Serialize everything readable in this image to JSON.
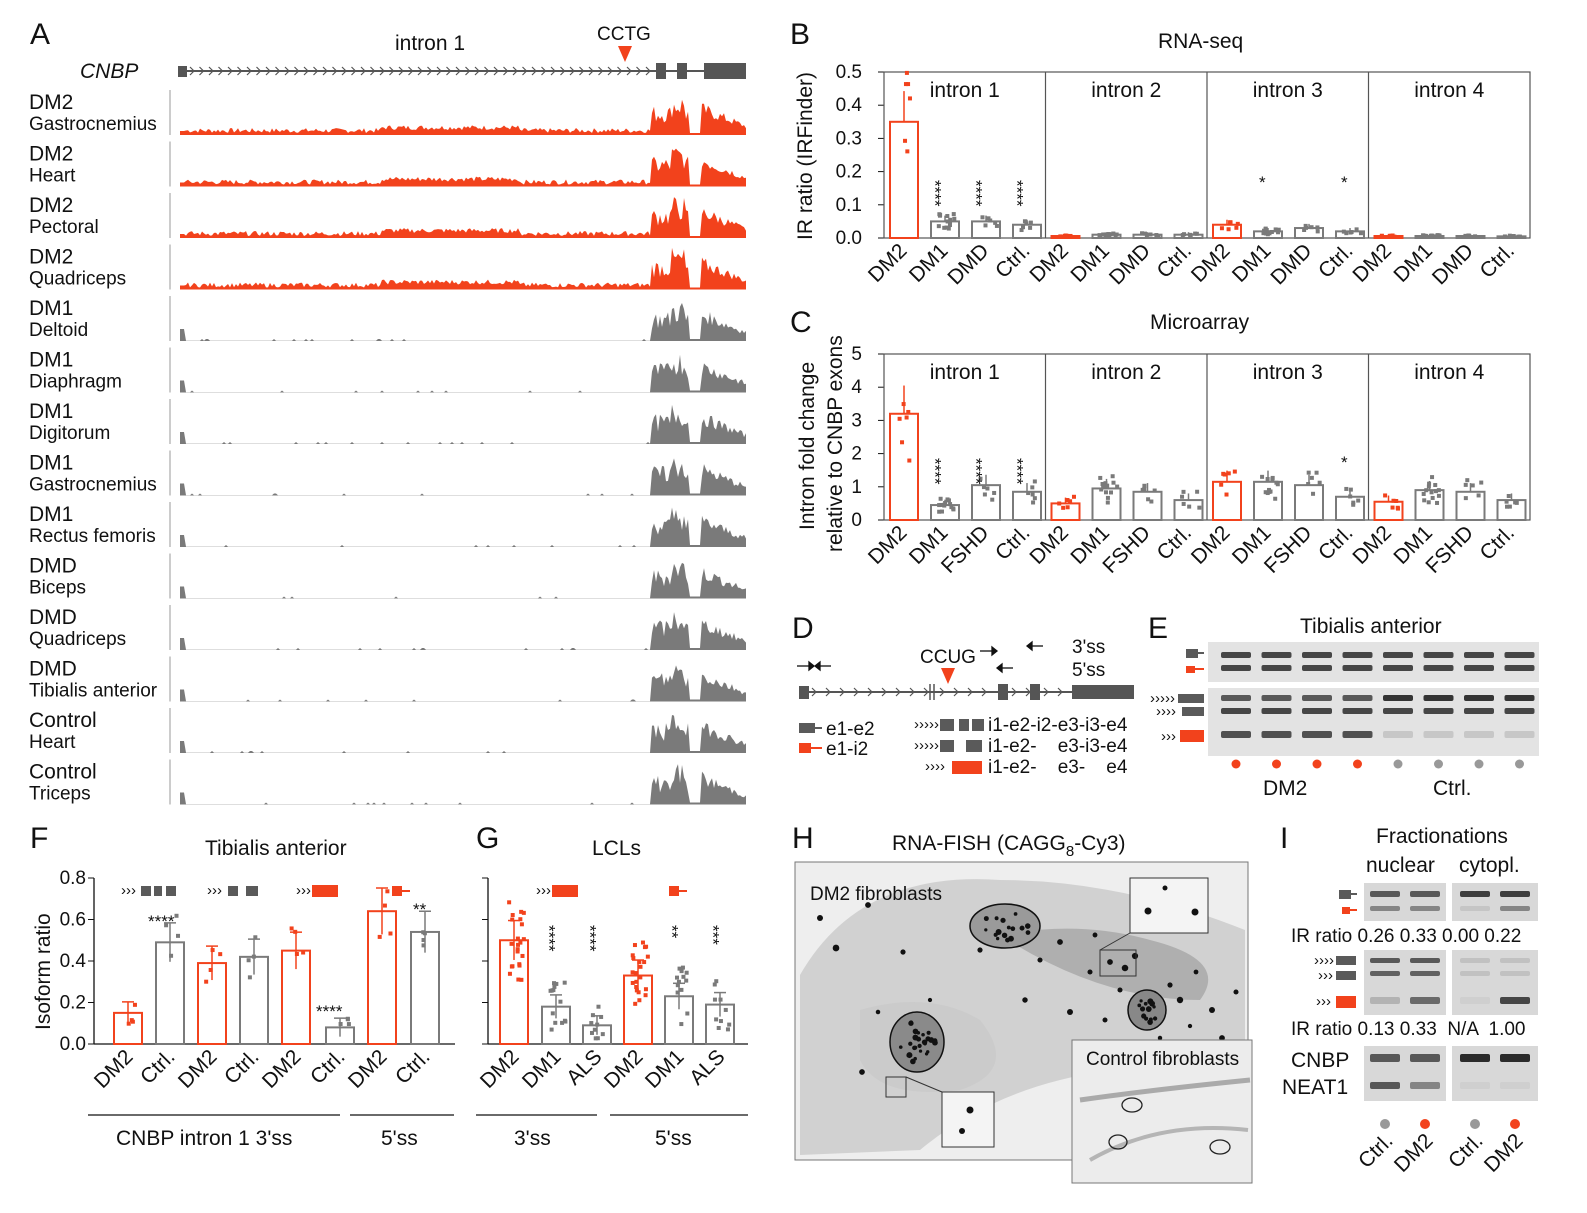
{
  "colors": {
    "dm2": "#f2421c",
    "grey": "#7a7a7a",
    "dark": "#5a5a5a"
  },
  "panelA": {
    "label": "A",
    "gene": "CNBP",
    "intron": "intron 1",
    "repeat": "CCTG",
    "tracks": [
      {
        "l1": "DM2",
        "l2": "Gastrocnemius",
        "group": "dm2"
      },
      {
        "l1": "DM2",
        "l2": "Heart",
        "group": "dm2"
      },
      {
        "l1": "DM2",
        "l2": "Pectoral",
        "group": "dm2"
      },
      {
        "l1": "DM2",
        "l2": "Quadriceps",
        "group": "dm2"
      },
      {
        "l1": "DM1",
        "l2": "Deltoid",
        "group": "other"
      },
      {
        "l1": "DM1",
        "l2": "Diaphragm",
        "group": "other"
      },
      {
        "l1": "DM1",
        "l2": "Digitorum",
        "group": "other"
      },
      {
        "l1": "DM1",
        "l2": "Gastrocnemius",
        "group": "other"
      },
      {
        "l1": "DM1",
        "l2": "Rectus femoris",
        "group": "other"
      },
      {
        "l1": "DMD",
        "l2": "Biceps",
        "group": "other"
      },
      {
        "l1": "DMD",
        "l2": "Quadriceps",
        "group": "other"
      },
      {
        "l1": "DMD",
        "l2": "Tibialis anterior",
        "group": "other"
      },
      {
        "l1": "Control",
        "l2": "Heart",
        "group": "other"
      },
      {
        "l1": "Control",
        "l2": "Triceps",
        "group": "other"
      }
    ]
  },
  "panelB": {
    "label": "B",
    "title": "RNA-seq",
    "ylabel": "IR ratio (IRFinder)",
    "yticks": [
      "0.5",
      "0.4",
      "0.3",
      "0.2",
      "0.1",
      "0.0"
    ],
    "intron_labels": [
      "intron 1",
      "intron 2",
      "intron 3",
      "intron 4"
    ],
    "xlabels": [
      "DM2",
      "DM1",
      "DMD",
      "Ctrl.",
      "DM2",
      "DM1",
      "DMD",
      "Ctrl.",
      "DM2",
      "DM1",
      "DMD",
      "Ctrl.",
      "DM2",
      "DM1",
      "DMD",
      "Ctrl."
    ]
  },
  "panelC": {
    "label": "C",
    "title": "Microarray",
    "ylabel1": "Intron fold change",
    "ylabel2": "relative to CNBP exons",
    "yticks": [
      "5",
      "4",
      "3",
      "2",
      "1",
      "0"
    ],
    "intron_labels": [
      "intron 1",
      "intron 2",
      "intron 3",
      "intron 4"
    ],
    "xlabels": [
      "DM2",
      "DM1",
      "FSHD",
      "Ctrl.",
      "DM2",
      "DM1",
      "FSHD",
      "Ctrl.",
      "DM2",
      "DM1",
      "FSHD",
      "Ctrl.",
      "DM2",
      "DM1",
      "FSHD",
      "Ctrl."
    ]
  },
  "panelD": {
    "label": "D",
    "repeat": "CCUG",
    "ss3": "3'ss",
    "ss5": "5'ss",
    "legend1": "e1-e2",
    "legend2": "e1-i2",
    "iso1": "i1-e2-i2-e3-i3-e4",
    "iso2": "i1-e2-    e3-i3-e4",
    "iso3": "i1-e2-    e3-    e4"
  },
  "panelE": {
    "label": "E",
    "title": "Tibialis anterior",
    "group1": "DM2",
    "group2": "Ctrl."
  },
  "panelF": {
    "label": "F",
    "title": "Tibialis anterior",
    "ylabel": "Isoform ratio",
    "yticks": [
      "0.8",
      "0.6",
      "0.4",
      "0.2",
      "0.0"
    ],
    "xlabels": [
      "DM2",
      "Ctrl.",
      "DM2",
      "Ctrl.",
      "DM2",
      "Ctrl.",
      "DM2",
      "Ctrl."
    ],
    "group1": "CNBP intron 1 3'ss",
    "group2": "5'ss",
    "stars": [
      "****",
      "****",
      "**"
    ]
  },
  "panelG": {
    "label": "G",
    "title": "LCLs",
    "xlabels": [
      "DM2",
      "DM1",
      "ALS",
      "DM2",
      "DM1",
      "ALS"
    ],
    "group1": "3'ss",
    "group2": "5'ss"
  },
  "panelH": {
    "label": "H",
    "title_a": "RNA-FISH (CAGG",
    "title_sub": "8",
    "title_b": "-Cy3)",
    "dm2_label": "DM2 fibroblasts",
    "ctrl_label": "Control fibroblasts"
  },
  "panelI": {
    "label": "I",
    "title": "Fractionations",
    "col1": "nuclear",
    "col2": "cytopl.",
    "ir1": "IR ratio 0.26 0.33 0.00 0.22",
    "ir2": "IR ratio 0.13 0.33  N/A  1.00",
    "cnbp": "CNBP",
    "neat1": "NEAT1",
    "xlabels": [
      "Ctrl.",
      "DM2",
      "Ctrl.",
      "DM2"
    ]
  },
  "chart_data": [
    {
      "type": "bar",
      "title": "RNA-seq",
      "ylabel": "IR ratio (IRFinder)",
      "ylim": [
        0,
        0.5
      ],
      "categories": [
        "DM2",
        "DM1",
        "DMD",
        "Ctrl."
      ],
      "series": [
        {
          "name": "intron 1",
          "values": [
            0.35,
            0.05,
            0.05,
            0.04
          ]
        },
        {
          "name": "intron 2",
          "values": [
            0.006,
            0.01,
            0.01,
            0.01
          ]
        },
        {
          "name": "intron 3",
          "values": [
            0.04,
            0.02,
            0.03,
            0.02
          ]
        },
        {
          "name": "intron 4",
          "values": [
            0.006,
            0.006,
            0.006,
            0.005
          ]
        }
      ]
    },
    {
      "type": "bar",
      "title": "Microarray",
      "ylabel": "Intron fold change relative to CNBP exons",
      "ylim": [
        0,
        5
      ],
      "categories": [
        "DM2",
        "DM1",
        "FSHD",
        "Ctrl."
      ],
      "series": [
        {
          "name": "intron 1",
          "values": [
            3.2,
            0.45,
            1.05,
            0.85
          ]
        },
        {
          "name": "intron 2",
          "values": [
            0.5,
            0.95,
            0.85,
            0.6
          ]
        },
        {
          "name": "intron 3",
          "values": [
            1.15,
            1.15,
            1.05,
            0.7
          ]
        },
        {
          "name": "intron 4",
          "values": [
            0.55,
            0.9,
            0.85,
            0.6
          ]
        }
      ]
    },
    {
      "type": "bar",
      "title": "Tibialis anterior",
      "ylabel": "Isoform ratio",
      "ylim": [
        0,
        0.8
      ],
      "categories": [
        "DM2",
        "Ctrl.",
        "DM2",
        "Ctrl.",
        "DM2",
        "Ctrl.",
        "DM2",
        "Ctrl."
      ],
      "values": [
        0.15,
        0.49,
        0.39,
        0.42,
        0.45,
        0.08,
        0.64,
        0.54
      ]
    },
    {
      "type": "bar",
      "title": "LCLs",
      "ylim": [
        0,
        0.8
      ],
      "categories": [
        "DM2",
        "DM1",
        "ALS",
        "DM2",
        "DM1",
        "ALS"
      ],
      "values": [
        0.5,
        0.18,
        0.09,
        0.33,
        0.23,
        0.19
      ]
    }
  ]
}
